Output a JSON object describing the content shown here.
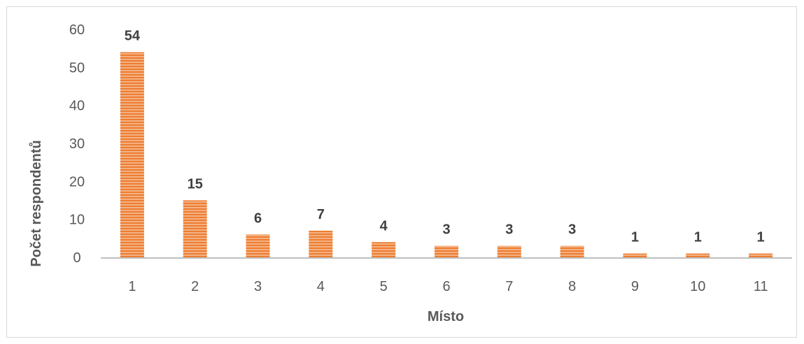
{
  "chart_data": {
    "type": "bar",
    "categories": [
      "1",
      "2",
      "3",
      "4",
      "5",
      "6",
      "7",
      "8",
      "9",
      "10",
      "11"
    ],
    "values": [
      54,
      15,
      6,
      7,
      4,
      3,
      3,
      3,
      1,
      1,
      1
    ],
    "data_labels": [
      "54",
      "15",
      "6",
      "7",
      "4",
      "3",
      "3",
      "3",
      "1",
      "1",
      "1"
    ],
    "xlabel": "Místo",
    "ylabel": "Počet respondentů",
    "ylim": [
      0,
      60
    ],
    "yticks": [
      "0",
      "10",
      "20",
      "30",
      "40",
      "50",
      "60"
    ],
    "grid": false,
    "legend": "none",
    "bar_color": "#f4b183",
    "bar_stripe_color": "#ed7d31"
  }
}
